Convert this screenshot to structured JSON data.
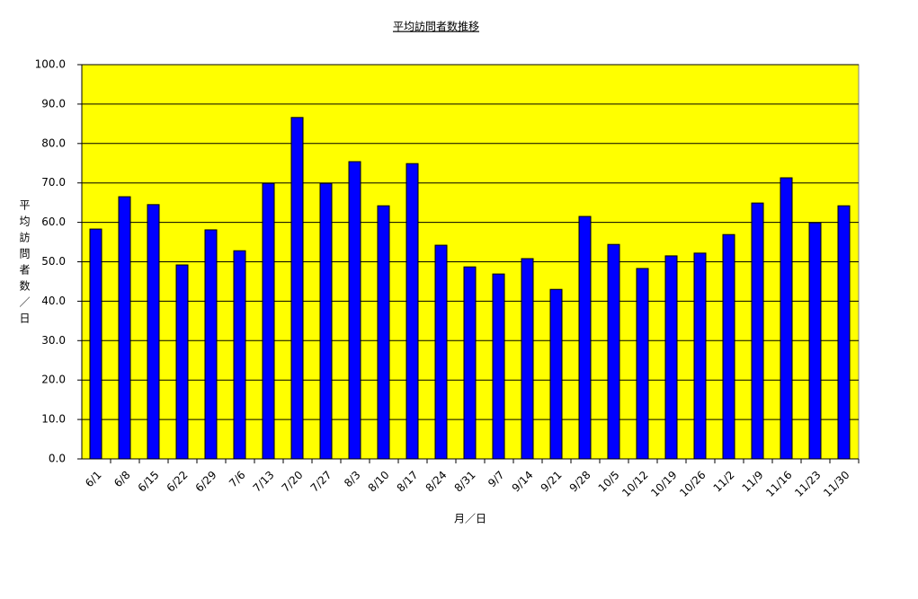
{
  "chart_data": {
    "type": "bar",
    "title": "平均訪問者数推移",
    "x_label": "月／日",
    "y_label": "平均訪問者数／日",
    "categories": [
      "6/1",
      "6/8",
      "6/15",
      "6/22",
      "6/29",
      "7/6",
      "7/13",
      "7/20",
      "7/27",
      "8/3",
      "8/10",
      "8/17",
      "8/24",
      "8/31",
      "9/7",
      "9/14",
      "9/21",
      "9/28",
      "10/5",
      "10/12",
      "10/19",
      "10/26",
      "11/2",
      "11/9",
      "11/16",
      "11/23",
      "11/30"
    ],
    "values": [
      58.3,
      66.5,
      64.5,
      49.2,
      58.1,
      52.8,
      69.9,
      86.6,
      69.9,
      75.4,
      64.2,
      74.9,
      54.2,
      48.7,
      46.9,
      50.8,
      43.0,
      61.5,
      54.4,
      48.3,
      51.5,
      52.2,
      56.9,
      64.9,
      71.3,
      59.9,
      64.2
    ],
    "color": "#0000ff",
    "background": "#ffff00",
    "ylim": [
      0,
      100
    ],
    "yticks": [
      {
        "value": 0,
        "label": "0.0"
      },
      {
        "value": 10,
        "label": "10.0"
      },
      {
        "value": 20,
        "label": "20.0"
      },
      {
        "value": 30,
        "label": "30.0"
      },
      {
        "value": 40,
        "label": "40.0"
      },
      {
        "value": 50,
        "label": "50.0"
      },
      {
        "value": 60,
        "label": "60.0"
      },
      {
        "value": 70,
        "label": "70.0"
      },
      {
        "value": 80,
        "label": "80.0"
      },
      {
        "value": 90,
        "label": "90.0"
      },
      {
        "value": 100,
        "label": "100.0"
      }
    ],
    "grid": true
  }
}
